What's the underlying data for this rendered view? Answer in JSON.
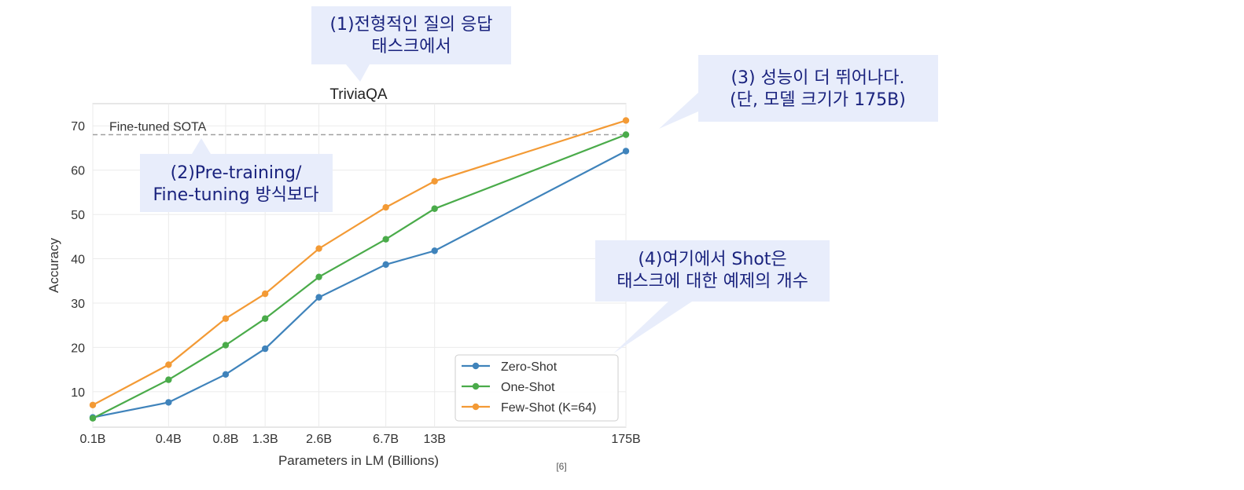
{
  "chart_data": {
    "type": "line",
    "title": "TriviaQA",
    "xlabel": "Parameters in LM (Billions)",
    "ylabel": "Accuracy",
    "categories": [
      "0.1B",
      "0.4B",
      "0.8B",
      "1.3B",
      "2.6B",
      "6.7B",
      "13B",
      "175B"
    ],
    "x_values": [
      0.125,
      0.35,
      0.76,
      1.3,
      2.7,
      6.7,
      13,
      175
    ],
    "x_scale": "log",
    "yticks": [
      10,
      20,
      30,
      40,
      50,
      60,
      70
    ],
    "ylim": [
      2,
      75
    ],
    "grid": true,
    "legend_position": "bottom-right",
    "reference_line": {
      "label": "Fine-tuned SOTA",
      "value": 68
    },
    "series": [
      {
        "name": "Zero-Shot",
        "color": "#3f83bb",
        "values": [
          4.2,
          7.6,
          13.9,
          19.7,
          31.3,
          38.7,
          41.8,
          64.3
        ]
      },
      {
        "name": "One-Shot",
        "color": "#4aab4a",
        "values": [
          4.0,
          12.7,
          20.5,
          26.5,
          35.9,
          44.4,
          51.3,
          68.0
        ]
      },
      {
        "name": "Few-Shot (K=64)",
        "color": "#f39a35",
        "values": [
          7.0,
          16.1,
          26.5,
          32.1,
          42.3,
          51.6,
          57.5,
          71.2
        ]
      }
    ]
  },
  "annotations": {
    "callout1": [
      "(1)전형적인 질의 응답",
      "태스크에서"
    ],
    "callout2": [
      "(2)Pre-training/",
      "Fine-tuning 방식보다"
    ],
    "callout3": [
      "(3) 성능이 더 뛰어나다.",
      "(단, 모델 크기가 175B)"
    ],
    "callout4": [
      "(4)여기에서 Shot은",
      "태스크에 대한 예제의 개수"
    ]
  },
  "citation": "[6]"
}
